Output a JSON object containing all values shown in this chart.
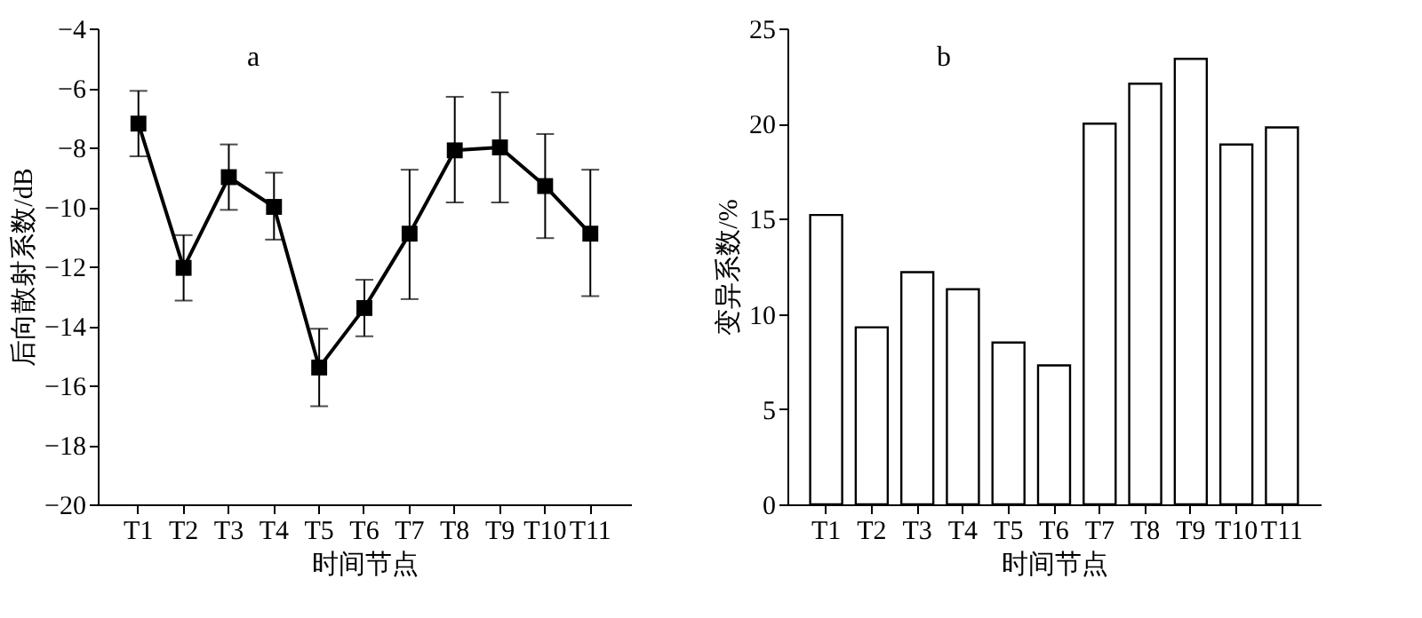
{
  "chart_data": [
    {
      "type": "line",
      "ylabel": "后向散射系数/dB",
      "xlabel": "时间节点",
      "annotations": [
        "a"
      ],
      "categories": [
        "T1",
        "T2",
        "T3",
        "T4",
        "T5",
        "T6",
        "T7",
        "T8",
        "T9",
        "T10",
        "T11"
      ],
      "series": [
        {
          "color": "#000000",
          "values": [
            -7.2,
            -12.05,
            -9.0,
            -10.0,
            -15.4,
            -13.4,
            -10.9,
            -8.1,
            -8.0,
            -9.3,
            -10.9
          ],
          "errors": [
            [
              -8.3,
              -6.1
            ],
            [
              -13.15,
              -10.95
            ],
            [
              -10.1,
              -7.9
            ],
            [
              -11.1,
              -8.85
            ],
            [
              -16.7,
              -14.1
            ],
            [
              -14.35,
              -12.45
            ],
            [
              -13.1,
              -8.75
            ],
            [
              -9.85,
              -6.3
            ],
            [
              -9.85,
              -6.15
            ],
            [
              -11.05,
              -7.55
            ],
            [
              -13.0,
              -8.75
            ]
          ]
        }
      ],
      "marker": "square",
      "line_style": "solid",
      "ylim": [
        -20,
        -4
      ],
      "yticks": [
        -20,
        -18,
        -16,
        -14,
        -12,
        -10,
        -8,
        -6,
        -4
      ],
      "grid": false
    },
    {
      "type": "bar",
      "ylabel": "变异系数/%",
      "xlabel": "时间节点",
      "annotations": [
        "b"
      ],
      "categories": [
        "T1",
        "T2",
        "T3",
        "T4",
        "T5",
        "T6",
        "T7",
        "T8",
        "T9",
        "T10",
        "T11"
      ],
      "values": [
        15.2,
        9.3,
        12.2,
        11.3,
        8.5,
        7.3,
        20.0,
        22.1,
        23.4,
        18.9,
        19.8
      ],
      "color": "#ffffff",
      "ylim": [
        0,
        25
      ],
      "yticks": [
        0,
        5,
        10,
        15,
        20,
        25
      ],
      "grid": false
    }
  ]
}
